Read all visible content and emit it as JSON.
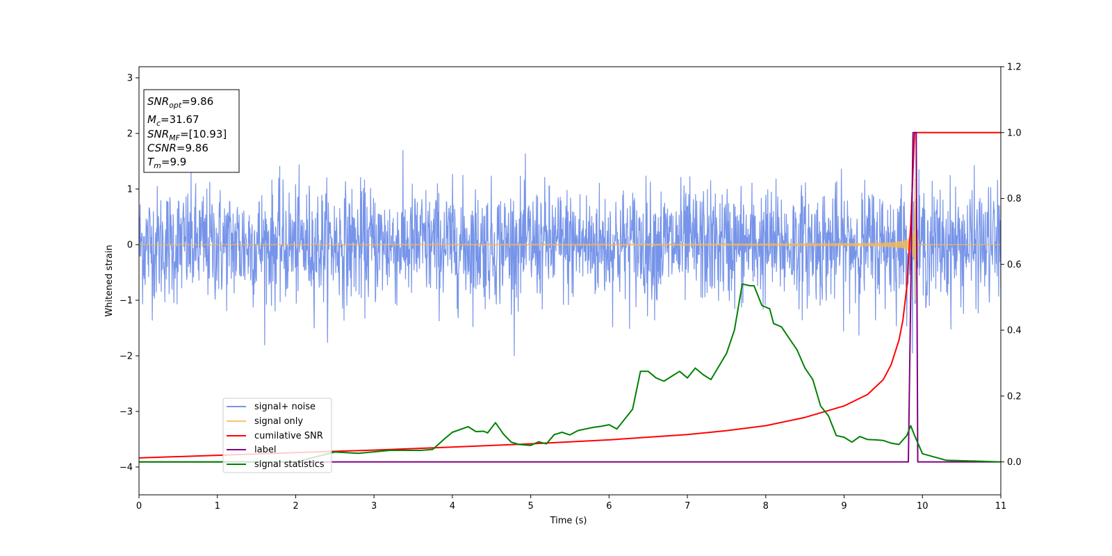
{
  "chart_data": {
    "type": "line",
    "title": "",
    "xlabel": "Time (s)",
    "ylabel": "Whitened strain",
    "xlim": [
      0,
      11
    ],
    "ylim": [
      -4.5,
      3.2
    ],
    "y2lim": [
      -0.1,
      1.2
    ],
    "x_ticks": [
      "0",
      "1",
      "2",
      "3",
      "4",
      "5",
      "6",
      "7",
      "8",
      "9",
      "10",
      "11"
    ],
    "y_ticks": [
      "3",
      "2",
      "1",
      "0",
      "−1",
      "−2",
      "−3",
      "−4"
    ],
    "y2_ticks": [
      "1.2",
      "1.0",
      "0.8",
      "0.6",
      "0.4",
      "0.2",
      "0.0"
    ],
    "grid": false,
    "legend_position": "lower-left",
    "info_box": {
      "lines": [
        {
          "sym": "SNR",
          "sub": "opt",
          "rest": "=9.86"
        },
        {
          "sym": "M",
          "sub": "c",
          "rest": "=31.67"
        },
        {
          "sym": "SNR",
          "sub": "MF",
          "rest": "=[10.93]"
        },
        {
          "sym": "CSNR",
          "sub": "",
          "rest": "=9.86"
        },
        {
          "sym": "T",
          "sub": "m",
          "rest": "=9.9"
        }
      ]
    },
    "series": [
      {
        "name": "signal+ noise",
        "axis": "left",
        "color": "#6f8ee8",
        "style": "noise band, amplitude ~±1.7 with spikes to -2.0"
      },
      {
        "name": "signal only",
        "axis": "left",
        "color": "#f5b95a",
        "style": "chirp growing toward t=9.9"
      },
      {
        "name": "cumilative SNR",
        "axis": "right",
        "color": "#ff0000",
        "x": [
          0,
          1,
          2,
          3,
          4,
          5,
          6,
          7,
          7.5,
          8,
          8.5,
          9,
          9.3,
          9.5,
          9.6,
          9.7,
          9.75,
          9.8,
          9.85,
          9.9,
          9.95,
          10,
          11
        ],
        "y": [
          0.012,
          0.02,
          0.028,
          0.036,
          0.045,
          0.055,
          0.067,
          0.083,
          0.095,
          0.11,
          0.135,
          0.17,
          0.205,
          0.25,
          0.295,
          0.37,
          0.43,
          0.53,
          0.72,
          1.0,
          1.0,
          1.0,
          1.0
        ]
      },
      {
        "name": "label",
        "axis": "right",
        "color": "#800080",
        "x": [
          0,
          9.82,
          9.88,
          9.92,
          9.94,
          11
        ],
        "y": [
          0.0,
          0.0,
          1.0,
          1.0,
          0.0,
          0.0
        ]
      },
      {
        "name": "signal statistics",
        "axis": "right",
        "color": "#008000",
        "x": [
          0,
          1,
          2,
          2.5,
          2.8,
          3.2,
          3.6,
          3.75,
          3.9,
          4.0,
          4.2,
          4.3,
          4.4,
          4.45,
          4.55,
          4.65,
          4.75,
          4.85,
          5.0,
          5.1,
          5.2,
          5.3,
          5.4,
          5.5,
          5.6,
          5.7,
          5.8,
          5.9,
          6.0,
          6.1,
          6.3,
          6.4,
          6.5,
          6.6,
          6.7,
          6.8,
          6.9,
          7.0,
          7.1,
          7.2,
          7.3,
          7.4,
          7.5,
          7.6,
          7.7,
          7.8,
          7.85,
          7.95,
          8.05,
          8.1,
          8.2,
          8.3,
          8.4,
          8.5,
          8.6,
          8.7,
          8.8,
          8.9,
          9.0,
          9.1,
          9.2,
          9.3,
          9.4,
          9.5,
          9.6,
          9.7,
          9.8,
          9.85,
          9.9,
          10.0,
          10.3,
          11
        ],
        "y": [
          0.0,
          0.0,
          0.0,
          0.03,
          0.026,
          0.035,
          0.035,
          0.038,
          0.07,
          0.09,
          0.107,
          0.092,
          0.093,
          0.088,
          0.119,
          0.085,
          0.06,
          0.053,
          0.05,
          0.061,
          0.055,
          0.083,
          0.09,
          0.082,
          0.095,
          0.1,
          0.105,
          0.108,
          0.113,
          0.1,
          0.16,
          0.275,
          0.275,
          0.255,
          0.245,
          0.26,
          0.275,
          0.255,
          0.285,
          0.265,
          0.25,
          0.29,
          0.33,
          0.4,
          0.54,
          0.535,
          0.535,
          0.475,
          0.465,
          0.42,
          0.41,
          0.375,
          0.34,
          0.285,
          0.25,
          0.17,
          0.14,
          0.08,
          0.075,
          0.06,
          0.077,
          0.068,
          0.067,
          0.065,
          0.057,
          0.053,
          0.08,
          0.11,
          0.08,
          0.025,
          0.005,
          0.0
        ]
      }
    ]
  }
}
